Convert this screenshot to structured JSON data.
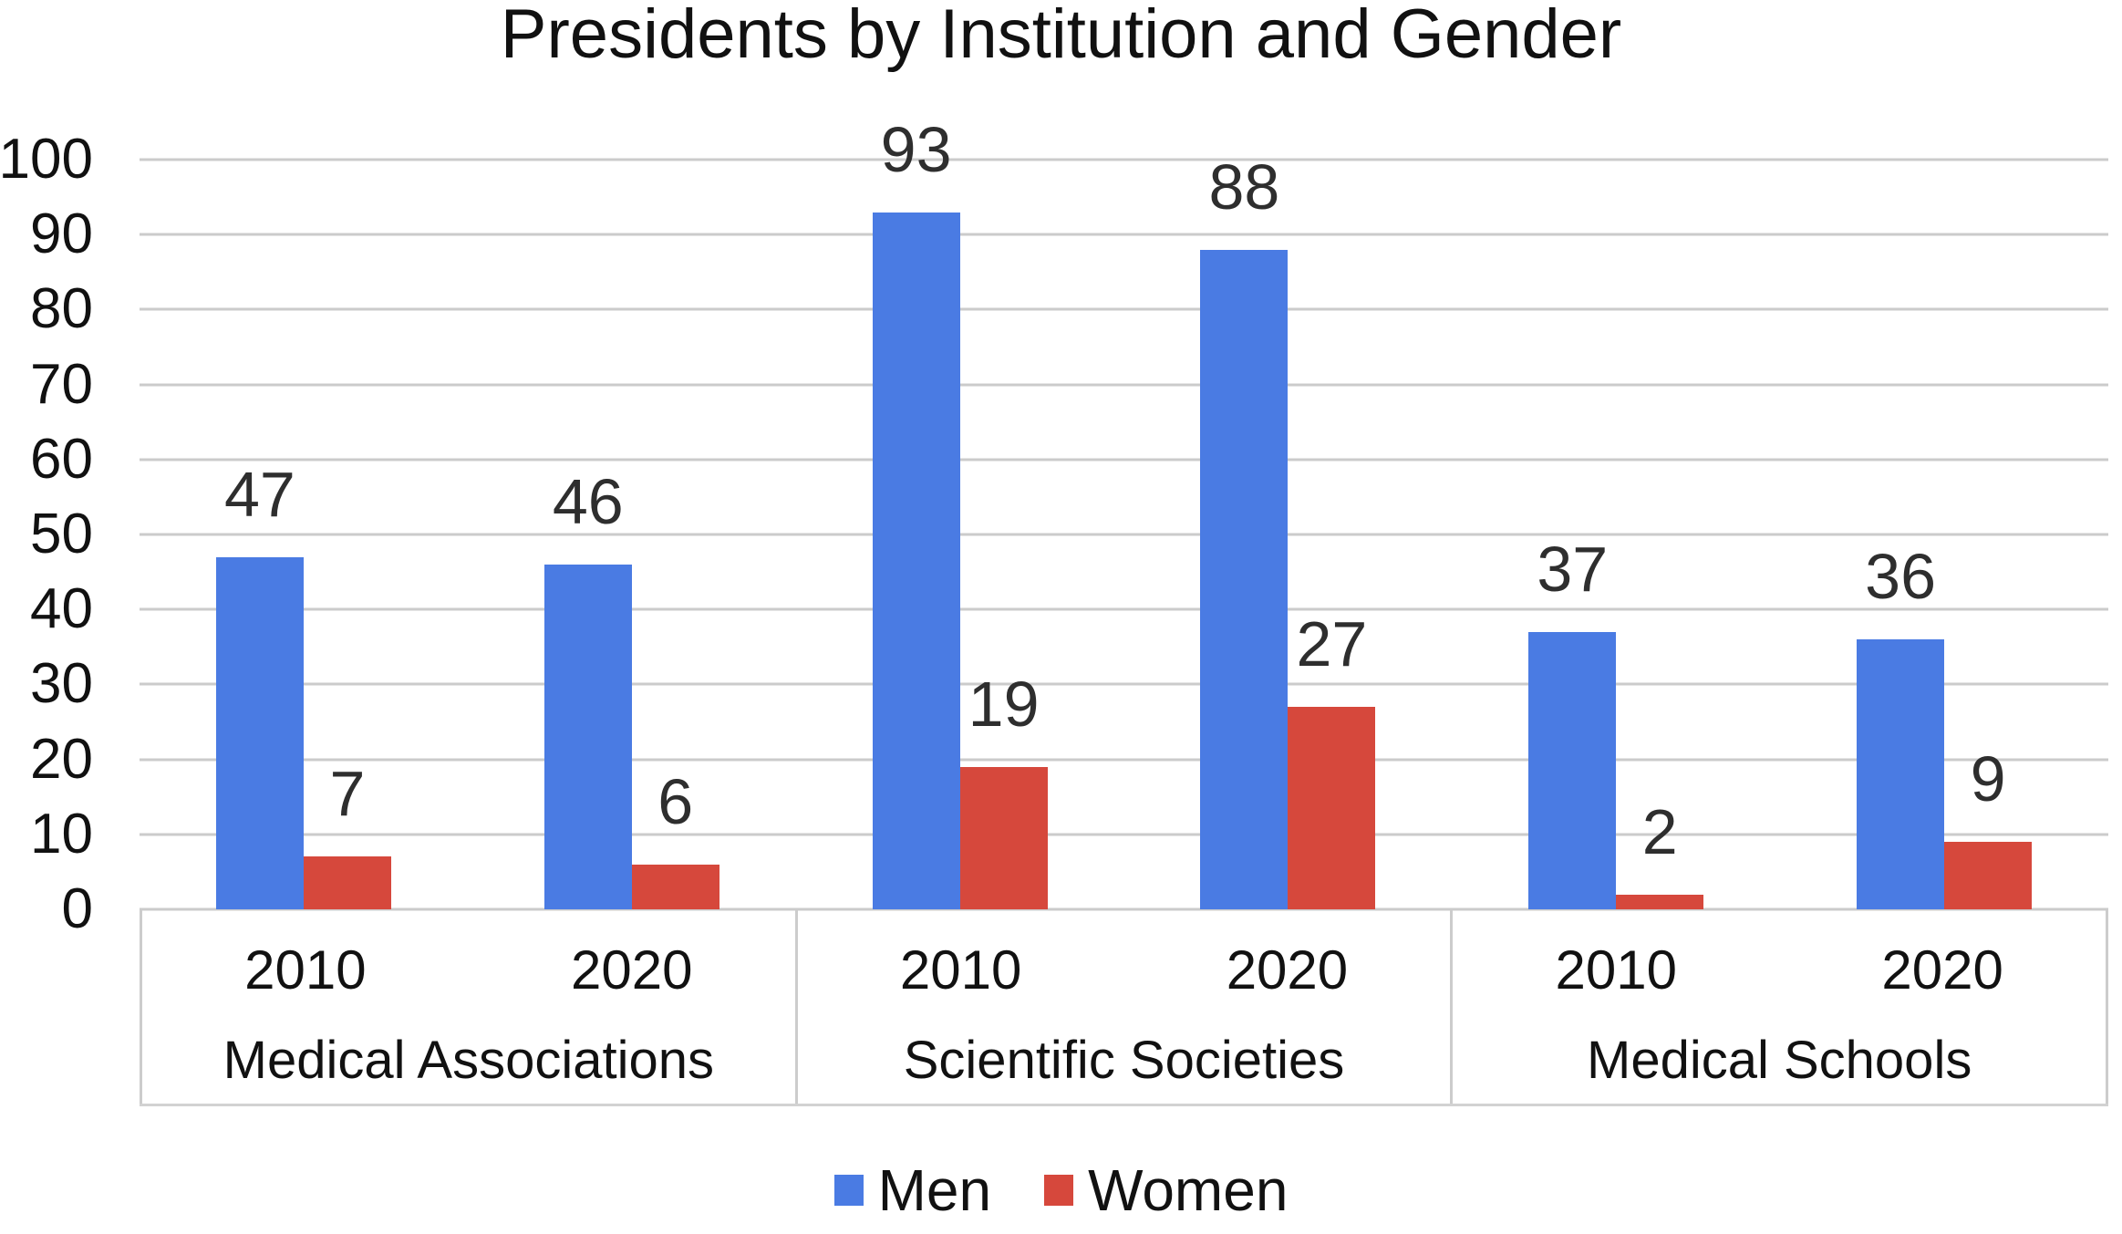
{
  "chart_data": {
    "type": "bar",
    "title": "Presidents by Institution and Gender",
    "ylim": [
      0,
      100
    ],
    "ytick_step": 10,
    "grid": true,
    "legend_position": "bottom",
    "groups": [
      {
        "label": "Medical Associations",
        "categories": [
          "2010",
          "2020"
        ]
      },
      {
        "label": "Scientific Societies",
        "categories": [
          "2010",
          "2020"
        ]
      },
      {
        "label": "Medical Schools",
        "categories": [
          "2010",
          "2020"
        ]
      }
    ],
    "series": [
      {
        "name": "Men",
        "color": "#4A7BE3",
        "values": [
          [
            47,
            46
          ],
          [
            93,
            88
          ],
          [
            37,
            36
          ]
        ]
      },
      {
        "name": "Women",
        "color": "#D6483C",
        "values": [
          [
            7,
            6
          ],
          [
            19,
            27
          ],
          [
            2,
            9
          ]
        ]
      }
    ],
    "colors": {
      "gridline": "#CBCBCB",
      "title_text": "#111111",
      "value_label_text": "#2E2E2E"
    }
  }
}
